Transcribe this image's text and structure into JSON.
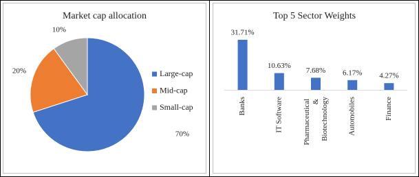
{
  "chart_data": [
    {
      "type": "pie",
      "title": "Market cap allocation",
      "categories": [
        "Large-cap",
        "Mid-cap",
        "Small-cap"
      ],
      "values": [
        70,
        20,
        10
      ],
      "value_labels": [
        "70%",
        "20%",
        "10%"
      ],
      "colors": [
        "#4472c4",
        "#ed7d31",
        "#a5a5a5"
      ],
      "legend": "right"
    },
    {
      "type": "bar",
      "title": "Top 5 Sector Weights",
      "categories": [
        "Banks",
        "IT Software",
        "Pharmaceutical & Biotechnology",
        "Automobiles",
        "Finance"
      ],
      "values": [
        31.71,
        10.63,
        7.68,
        6.17,
        4.27
      ],
      "value_labels": [
        "31.71%",
        "10.63%",
        "7.68%",
        "6.17%",
        "4.27%"
      ],
      "color": "#4472c4"
    }
  ]
}
